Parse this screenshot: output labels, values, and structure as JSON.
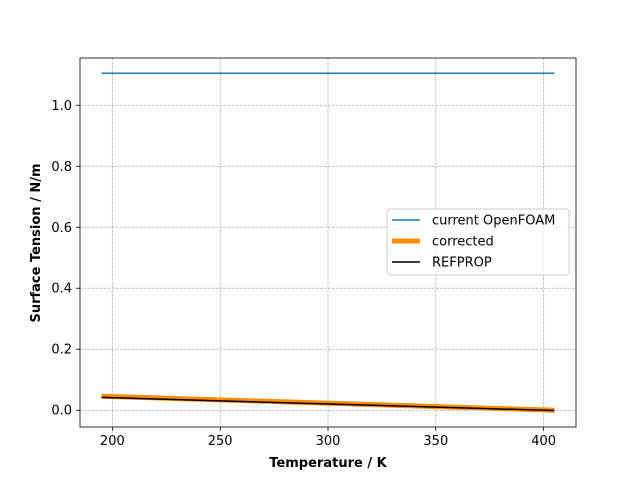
{
  "chart_data": {
    "type": "line",
    "title": "",
    "xlabel": "Temperature / K",
    "ylabel": "Surface Tension / N/m",
    "xlim": [
      185,
      415
    ],
    "ylim": [
      -0.055,
      1.155
    ],
    "xticks": [
      200,
      250,
      300,
      350,
      400
    ],
    "xtick_labels": [
      "200",
      "250",
      "300",
      "350",
      "400"
    ],
    "yticks": [
      0.0,
      0.2,
      0.4,
      0.6,
      0.8,
      1.0
    ],
    "ytick_labels": [
      "0.0",
      "0.2",
      "0.4",
      "0.6",
      "0.8",
      "1.0"
    ],
    "grid": true,
    "legend_position": "center-right",
    "series": [
      {
        "name": "current OpenFOAM",
        "color": "#1f77b4",
        "x": [
          195,
          405
        ],
        "y": [
          1.105,
          1.105
        ]
      },
      {
        "name": "corrected",
        "color": "#ff8c00",
        "x": [
          195,
          405
        ],
        "y": [
          0.046,
          0.0
        ]
      },
      {
        "name": "REFPROP",
        "color": "#000000",
        "x": [
          195,
          405
        ],
        "y": [
          0.042,
          -0.001
        ]
      }
    ]
  }
}
